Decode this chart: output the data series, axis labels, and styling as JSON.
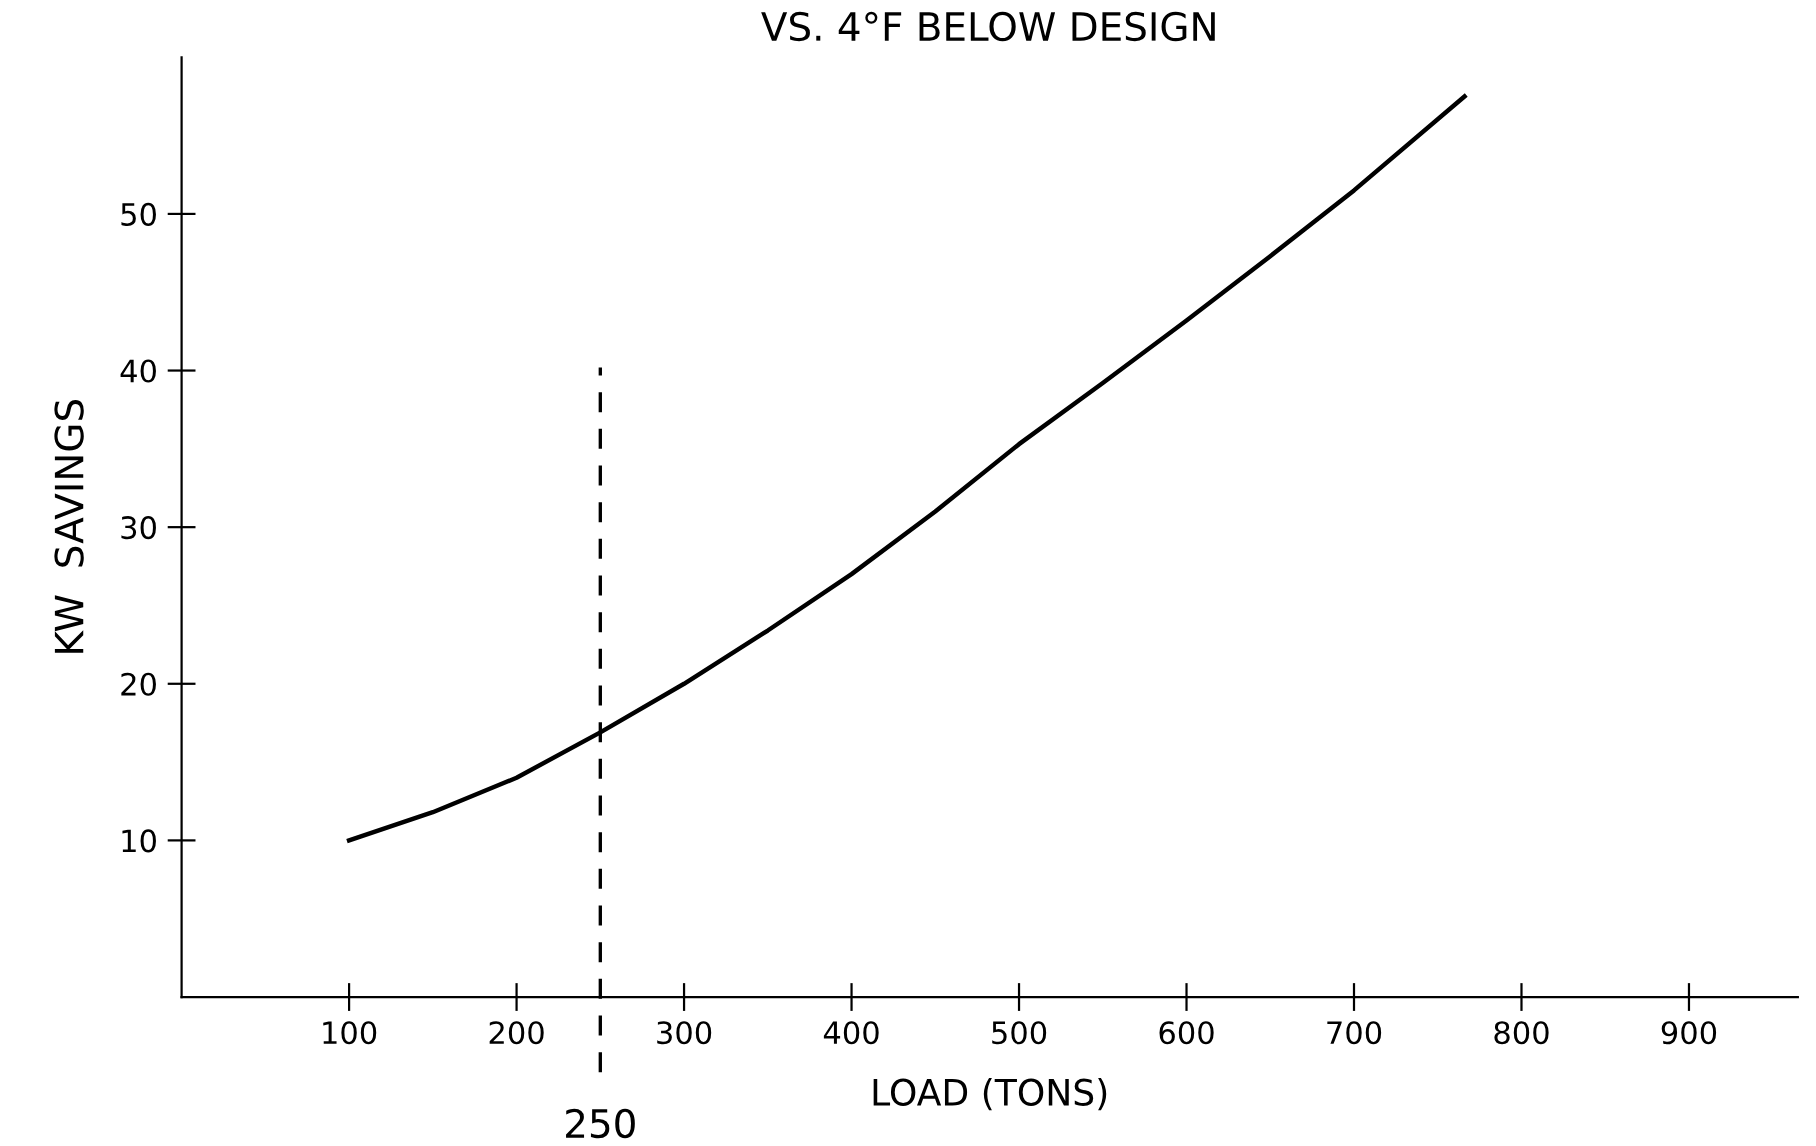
{
  "chart_data": {
    "type": "line",
    "title": "VS. 4°F BELOW DESIGN",
    "xlabel": "LOAD (TONS)",
    "ylabel": "KW  SAVINGS",
    "x": [
      100,
      150,
      200,
      250,
      300,
      350,
      400,
      450,
      500,
      550,
      600,
      650,
      700,
      766
    ],
    "series": [
      {
        "color": "#000000",
        "values": [
          10,
          11.8,
          14,
          16.9,
          20,
          23.4,
          27,
          31,
          35.3,
          39.2,
          43.2,
          47.3,
          51.5,
          57.5
        ]
      }
    ],
    "xlim": [
      0,
      965
    ],
    "ylim": [
      0,
      60
    ],
    "xticks": [
      100,
      200,
      300,
      400,
      500,
      600,
      700,
      800,
      900
    ],
    "yticks": [
      10,
      20,
      30,
      40,
      50
    ],
    "ref_lines": [
      {
        "axis": "x",
        "value": 250,
        "label": "250",
        "color": "#000000",
        "line_style": "dashed"
      }
    ],
    "grid": false,
    "legend": false,
    "marker": "none",
    "line_style": "solid"
  }
}
